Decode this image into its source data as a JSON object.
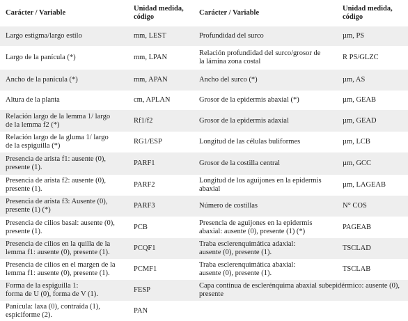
{
  "headers": {
    "character": "Carácter / Variable",
    "unit": "Unidad medida,\ncódigo",
    "character2": "Carácter / Variable",
    "unit2": "Unidad medida,\ncódigo"
  },
  "rows": [
    {
      "c1": "Largo estigma/largo estilo",
      "c2": "mm, LEST",
      "c3": "Profundidad del surco",
      "c4": "µm, PS"
    },
    {
      "c1": "Largo de la panícula (*)",
      "c2": "mm, LPAN",
      "c3": "Relación profundidad del surco/grosor de\nla lámina zona costal",
      "c4": "R PS/GLZC"
    },
    {
      "c1": "Ancho de la panícula (*)",
      "c2": "mm, APAN",
      "c3": "Ancho del surco (*)",
      "c4": "µm, AS"
    },
    {
      "c1": "Altura de la planta",
      "c2": "cm, APLAN",
      "c3": "Grosor de la epidermis abaxial (*)",
      "c4": "µm, GEAB"
    },
    {
      "c1": "Relación largo de la lemma 1/ largo\nde la lemma f2 (*)",
      "c2": "Rf1/f2",
      "c3": "Grosor de la epidermis adaxial",
      "c4": "µm, GEAD"
    },
    {
      "c1": "Relación largo de la gluma 1/ largo\nde la espiguilla (*)",
      "c2": "RG1/ESP",
      "c3": "Longitud de las células buliformes",
      "c4": "µm, LCB"
    },
    {
      "c1": "Presencia de arista f1: ausente (0),\npresente (1).",
      "c2": "PARF1",
      "c3": "Grosor de la costilla central",
      "c4": "µm, GCC"
    },
    {
      "c1": "Presencia de arista f2: ausente (0),\npresente (1).",
      "c2": "PARF2",
      "c3": "Longitud de los aguijones en la epidermis\nabaxial",
      "c4": "µm, LAGEAB"
    },
    {
      "c1": "Presencia de arista f3: Ausente (0),\npresente (1) (*)",
      "c2": "PARF3",
      "c3": "Número de costillas",
      "c4": "N° COS"
    },
    {
      "c1": "Presencia de cilios basal: ausente (0),\npresente (1).",
      "c2": "PCB",
      "c3": "Presencia de aguijones en la epidermis\nabaxial: ausente (0), presente (1) (*)",
      "c4": "PAGEAB"
    },
    {
      "c1": "Presencia de cilios en la quilla de la\nlemma f1: ausente (0), presente (1).",
      "c2": "PCQF1",
      "c3": "Traba esclerenquimática adaxial:\nausente (0), presente (1).",
      "c4": "TSCLAD"
    },
    {
      "c1": "Presencia de cilios en el margen de la\nlemma f1: ausente (0), presente (1).",
      "c2": "PCMF1",
      "c3": "Traba esclerenquimática abaxial:\nausente (0), presente (1).",
      "c4": "TSCLAB"
    },
    {
      "c1": "Forma de la espiguilla 1:\nforma de U (0), forma de V (1).",
      "c2": "FESP",
      "c3": "Capa continua de esclerénquima abaxial subepidérmico: ausente (0),\npresente",
      "c4": ""
    },
    {
      "c1": "Panícula: laxa (0), contraída (1),\nespiciforme (2).",
      "c2": "PAN",
      "c3": "",
      "c4": ""
    }
  ]
}
